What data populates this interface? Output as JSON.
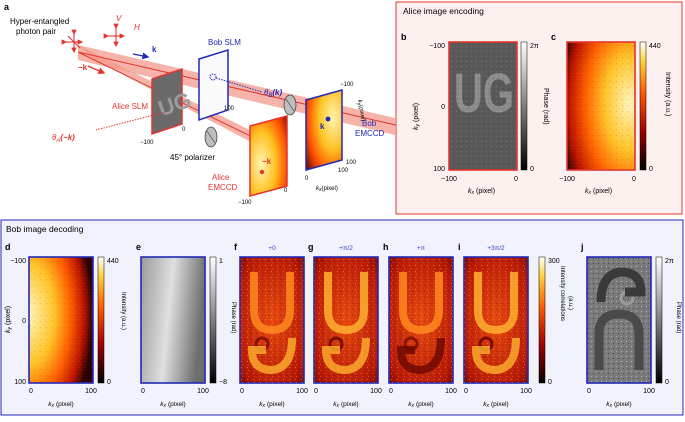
{
  "panel_a": {
    "letter": "a",
    "source": "Hyper-entangled photon pair",
    "source_l1": "Hyper-entangled",
    "source_l2": "photon pair",
    "pol_v": "V",
    "pol_h": "H",
    "k_pos": "k",
    "k_neg": "−k",
    "bob_slm": "Bob SLM",
    "alice_slm": "Alice SLM",
    "theta_b": "θ",
    "theta_b_sub": "B",
    "theta_b_arg": "(k)",
    "theta_a": "θ",
    "theta_a_sub": "A",
    "theta_a_arg": "(−k)",
    "polarizer": "45° polarizer",
    "alice_emccd_l1": "Alice",
    "alice_emccd_l2": "EMCCD",
    "bob_emccd_l1": "Bob",
    "bob_emccd_l2": "EMCCD",
    "ticks": {
      "n100": "−100",
      "zero": "0",
      "p100": "100"
    },
    "ky_axis": "k",
    "ky_sub": "y",
    "ky_unit": "(pixel)",
    "kx_axis": "k",
    "kx_sub": "x",
    "kx_unit": "(pixel)",
    "slm_glyph": "UG"
  },
  "alice_box": {
    "title": "Alice image encoding",
    "panel_b": {
      "letter": "b",
      "y_ticks": [
        "−100",
        "0",
        "100"
      ],
      "x_ticks": [
        "−100",
        "0"
      ],
      "ylabel": "k",
      "ylabel_sub": "y",
      "ylabel_unit": "(pixel)",
      "xlabel": "k",
      "xlabel_sub": "x",
      "xlabel_unit": "(pixel)",
      "cbar_max": "2π",
      "cbar_min": "0",
      "cbar_label": "Phase (rad)"
    },
    "panel_c": {
      "letter": "c",
      "x_ticks": [
        "−100",
        "0"
      ],
      "xlabel": "k",
      "xlabel_sub": "x",
      "xlabel_unit": "(pixel)",
      "cbar_max": "440",
      "cbar_min": "0",
      "cbar_label": "Intensity (a.u.)"
    }
  },
  "bob_box": {
    "title": "Bob image decoding",
    "xlabel": "k",
    "xlabel_sub": "x",
    "xlabel_unit": "(pixel)",
    "x_ticks": [
      "0",
      "100"
    ],
    "panel_d": {
      "letter": "d",
      "y_ticks": [
        "−100",
        "0",
        "100"
      ],
      "ylabel": "k",
      "ylabel_sub": "y",
      "ylabel_unit": "(pixel)",
      "cbar_max": "440",
      "cbar_min": "0",
      "cbar_label": "Intensity (a.u.)"
    },
    "panel_e": {
      "letter": "e",
      "cbar_max": "1",
      "cbar_min": "−8",
      "cbar_label": "Phase (rad)"
    },
    "panel_f": {
      "letter": "f",
      "phase": "+0"
    },
    "panel_g": {
      "letter": "g",
      "phase": "+π/2"
    },
    "panel_h": {
      "letter": "h",
      "phase": "+π"
    },
    "panel_i": {
      "letter": "i",
      "phase": "+3π/2",
      "cbar_max": "300",
      "cbar_min": "0",
      "cbar_label_l1": "Intensity correlations",
      "cbar_label_l2": "(a.u.)"
    },
    "panel_j": {
      "letter": "j",
      "cbar_max": "2π",
      "cbar_min": "0",
      "cbar_label": "Phase (rad)"
    }
  },
  "colors": {
    "alice_red": "#e4342e",
    "bob_blue": "#2228b8",
    "box_red_fill": "#fdf1ef",
    "box_blue_fill": "#f1f2fb",
    "phase_blue": "#3344cc"
  }
}
